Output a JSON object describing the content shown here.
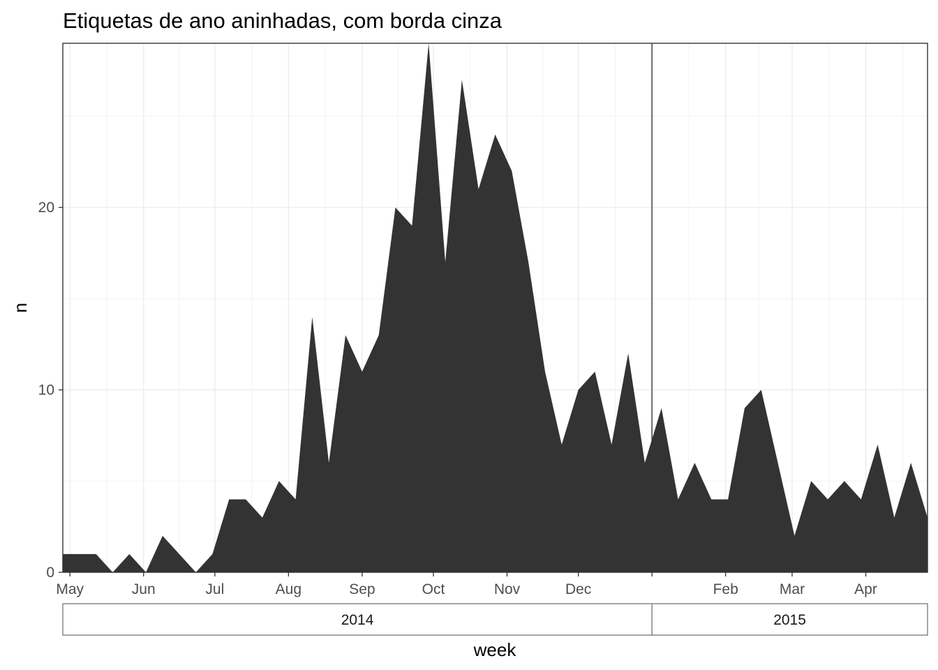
{
  "chart_data": {
    "type": "area",
    "title": "Etiquetas de ano aninhadas, com borda cinza",
    "xlabel": "week",
    "ylabel": "n",
    "x_start": "2014-04-28",
    "x_end": "2015-04-27",
    "ylim": [
      0,
      29
    ],
    "y_ticks": [
      "0",
      "10",
      "20"
    ],
    "y_tick_values": [
      0,
      10,
      20
    ],
    "month_ticks": [
      {
        "label": "May",
        "date": "2014-05-01"
      },
      {
        "label": "Jun",
        "date": "2014-06-01"
      },
      {
        "label": "Jul",
        "date": "2014-07-01"
      },
      {
        "label": "Aug",
        "date": "2014-08-01"
      },
      {
        "label": "Sep",
        "date": "2014-09-01"
      },
      {
        "label": "Oct",
        "date": "2014-10-01"
      },
      {
        "label": "Nov",
        "date": "2014-11-01"
      },
      {
        "label": "Dec",
        "date": "2014-12-01"
      },
      {
        "label": "",
        "date": "2015-01-01"
      },
      {
        "label": "Feb",
        "date": "2015-02-01"
      },
      {
        "label": "Mar",
        "date": "2015-03-01"
      },
      {
        "label": "Apr",
        "date": "2015-04-01"
      }
    ],
    "year_strips": [
      {
        "label": "2014",
        "from": "2014-04-28",
        "to": "2015-01-01"
      },
      {
        "label": "2015",
        "from": "2015-01-01",
        "to": "2015-04-27"
      }
    ],
    "grid": true,
    "fill_color": "#333333",
    "series": [
      {
        "x": [
          "2014-04-28",
          "2014-05-05",
          "2014-05-12",
          "2014-05-19",
          "2014-05-26",
          "2014-06-02",
          "2014-06-09",
          "2014-06-16",
          "2014-06-23",
          "2014-06-30",
          "2014-07-07",
          "2014-07-14",
          "2014-07-21",
          "2014-07-28",
          "2014-08-04",
          "2014-08-11",
          "2014-08-18",
          "2014-08-25",
          "2014-09-01",
          "2014-09-08",
          "2014-09-15",
          "2014-09-22",
          "2014-09-29",
          "2014-10-06",
          "2014-10-13",
          "2014-10-20",
          "2014-10-27",
          "2014-11-03",
          "2014-11-10",
          "2014-11-17",
          "2014-11-24",
          "2014-12-01",
          "2014-12-08",
          "2014-12-15",
          "2014-12-22",
          "2014-12-29",
          "2015-01-05",
          "2015-01-12",
          "2015-01-19",
          "2015-01-26",
          "2015-02-02",
          "2015-02-09",
          "2015-02-16",
          "2015-02-23",
          "2015-03-02",
          "2015-03-09",
          "2015-03-16",
          "2015-03-23",
          "2015-03-30",
          "2015-04-06",
          "2015-04-13",
          "2015-04-20",
          "2015-04-27"
        ],
        "values": [
          1,
          1,
          1,
          0,
          1,
          0,
          2,
          1,
          0,
          1,
          4,
          4,
          3,
          5,
          4,
          14,
          6,
          13,
          11,
          13,
          20,
          19,
          29,
          17,
          27,
          21,
          24,
          22,
          17,
          11,
          7,
          10,
          11,
          7,
          12,
          6,
          9,
          4,
          6,
          4,
          4,
          9,
          10,
          6,
          2,
          5,
          4,
          5,
          4,
          7,
          3,
          6,
          3
        ]
      }
    ]
  }
}
